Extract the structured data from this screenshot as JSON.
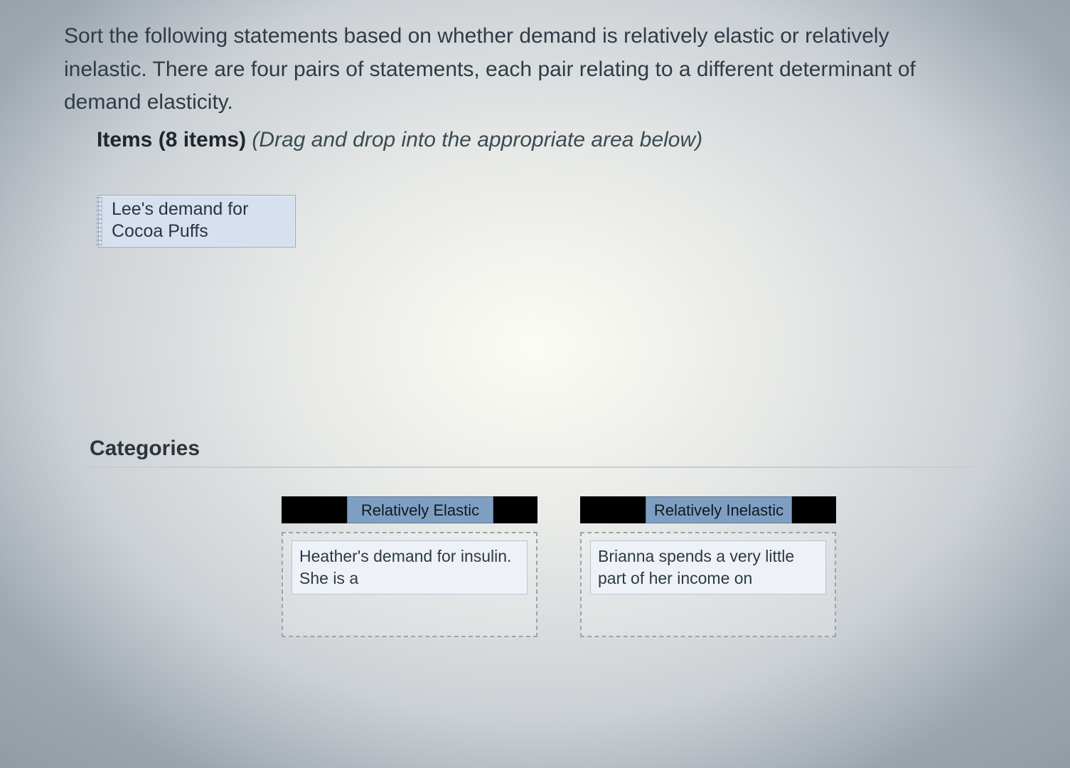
{
  "prompt_text": "Sort the following statements based on whether demand is relatively elastic or relatively inelastic. There are four pairs of statements, each pair relating to a different determinant of demand elasticity.",
  "items_header_bold": "Items (8 items)",
  "items_header_hint": "(Drag and drop into the appropriate area below)",
  "pool": {
    "remaining_chip": "Lee's demand for Cocoa Puffs"
  },
  "categories_title": "Categories",
  "categories": {
    "elastic": {
      "label": "Relatively Elastic",
      "placed_item": "Heather's demand for insulin. She is a"
    },
    "inelastic": {
      "label": "Relatively Inelastic",
      "placed_item": "Brianna spends a very little part of her income on"
    }
  },
  "colors": {
    "chip_bg": "#d7e0ee",
    "category_label_bg": "#7f9fc2",
    "text": "#2f3b46"
  }
}
